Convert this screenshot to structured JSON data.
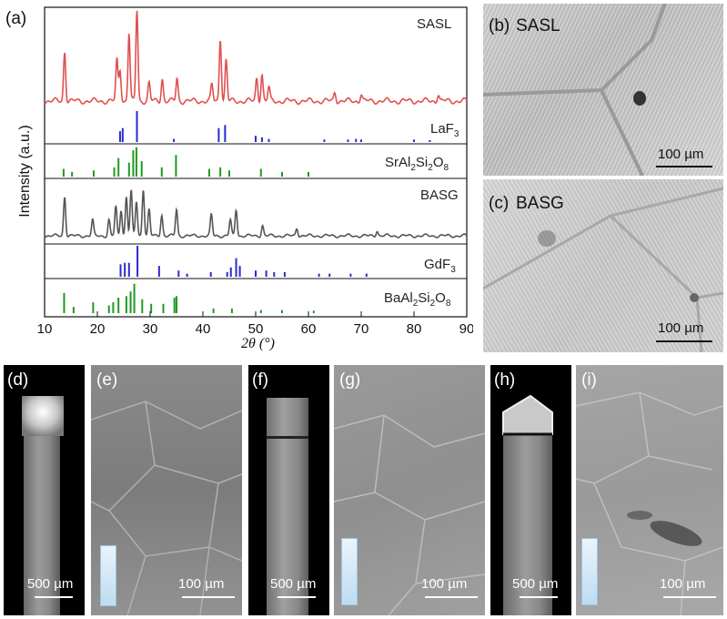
{
  "panels": {
    "a": "(a)",
    "b": "(b)",
    "c": "(c)",
    "d": "(d)",
    "e": "(e)",
    "f": "(f)",
    "g": "(g)",
    "h": "(h)",
    "i": "(i)"
  },
  "micrographs": {
    "b_title": "SASL",
    "c_title": "BASG",
    "scale_100": "100 µm",
    "scale_500": "500 µm"
  },
  "chart_data": {
    "type": "line",
    "xlabel": "2θ (°)",
    "ylabel": "Intensity (a.u.)",
    "xlim": [
      10,
      90
    ],
    "xticks": [
      10,
      20,
      30,
      40,
      50,
      60,
      70,
      80,
      90
    ],
    "series": [
      {
        "name": "SASL",
        "kind": "pattern",
        "color": "#e05050",
        "peaks": [
          [
            13.8,
            0.55
          ],
          [
            23.7,
            0.45
          ],
          [
            24.3,
            0.35
          ],
          [
            26.0,
            0.75
          ],
          [
            27.5,
            1.0
          ],
          [
            29.8,
            0.2
          ],
          [
            32.3,
            0.25
          ],
          [
            35.1,
            0.25
          ],
          [
            41.7,
            0.18
          ],
          [
            43.3,
            0.7
          ],
          [
            44.4,
            0.45
          ],
          [
            50.2,
            0.25
          ],
          [
            51.2,
            0.3
          ],
          [
            52.5,
            0.15
          ],
          [
            65.0,
            0.1
          ],
          [
            70.0,
            0.08
          ],
          [
            84.6,
            0.08
          ]
        ]
      },
      {
        "name": "LaF3",
        "kind": "reference",
        "color": "#2a2ad0",
        "peaks": [
          [
            24.3,
            0.35
          ],
          [
            24.8,
            0.45
          ],
          [
            27.5,
            1.0
          ],
          [
            34.5,
            0.1
          ],
          [
            43.0,
            0.45
          ],
          [
            44.2,
            0.55
          ],
          [
            50.0,
            0.2
          ],
          [
            51.2,
            0.15
          ],
          [
            52.5,
            0.1
          ],
          [
            63.0,
            0.08
          ],
          [
            67.5,
            0.08
          ],
          [
            69.0,
            0.1
          ],
          [
            70.0,
            0.08
          ],
          [
            80.0,
            0.08
          ],
          [
            83.0,
            0.06
          ]
        ]
      },
      {
        "name": "SrAl2Si2O8",
        "kind": "reference",
        "color": "#1f9a1f",
        "peaks": [
          [
            13.6,
            0.25
          ],
          [
            15.2,
            0.15
          ],
          [
            19.3,
            0.2
          ],
          [
            23.2,
            0.3
          ],
          [
            24.0,
            0.6
          ],
          [
            26.0,
            0.45
          ],
          [
            26.8,
            0.85
          ],
          [
            27.4,
            0.95
          ],
          [
            28.4,
            0.5
          ],
          [
            32.2,
            0.3
          ],
          [
            34.9,
            0.7
          ],
          [
            41.2,
            0.25
          ],
          [
            43.3,
            0.3
          ],
          [
            45.0,
            0.2
          ],
          [
            51.0,
            0.25
          ],
          [
            55.0,
            0.15
          ],
          [
            60.0,
            0.15
          ]
        ]
      },
      {
        "name": "BASG",
        "kind": "pattern",
        "color": "#555555",
        "peaks": [
          [
            13.8,
            0.75
          ],
          [
            19.1,
            0.3
          ],
          [
            22.2,
            0.3
          ],
          [
            23.5,
            0.55
          ],
          [
            24.5,
            0.5
          ],
          [
            25.5,
            0.75
          ],
          [
            26.4,
            0.85
          ],
          [
            27.4,
            0.65
          ],
          [
            28.7,
            0.9
          ],
          [
            29.8,
            0.5
          ],
          [
            32.2,
            0.4
          ],
          [
            35.0,
            0.5
          ],
          [
            41.6,
            0.4
          ],
          [
            45.2,
            0.3
          ],
          [
            46.3,
            0.5
          ],
          [
            51.3,
            0.2
          ],
          [
            57.8,
            0.15
          ],
          [
            73.0,
            0.1
          ]
        ]
      },
      {
        "name": "GdF3",
        "kind": "reference",
        "color": "#2a2ad0",
        "peaks": [
          [
            24.4,
            0.4
          ],
          [
            25.2,
            0.45
          ],
          [
            26.0,
            0.45
          ],
          [
            27.6,
            1.0
          ],
          [
            31.7,
            0.35
          ],
          [
            35.4,
            0.2
          ],
          [
            37.0,
            0.1
          ],
          [
            41.5,
            0.15
          ],
          [
            44.6,
            0.15
          ],
          [
            45.3,
            0.3
          ],
          [
            46.3,
            0.6
          ],
          [
            47.0,
            0.35
          ],
          [
            50.0,
            0.2
          ],
          [
            52.0,
            0.2
          ],
          [
            53.5,
            0.15
          ],
          [
            55.5,
            0.15
          ],
          [
            62.0,
            0.1
          ],
          [
            64.0,
            0.1
          ],
          [
            68.0,
            0.1
          ],
          [
            71.0,
            0.1
          ]
        ]
      },
      {
        "name": "BaAl2Si2O8",
        "kind": "reference",
        "color": "#1f9a1f",
        "peaks": [
          [
            13.7,
            0.65
          ],
          [
            15.5,
            0.2
          ],
          [
            19.2,
            0.35
          ],
          [
            22.2,
            0.25
          ],
          [
            23.0,
            0.35
          ],
          [
            24.0,
            0.5
          ],
          [
            25.5,
            0.55
          ],
          [
            26.3,
            0.7
          ],
          [
            27.0,
            0.95
          ],
          [
            28.5,
            0.45
          ],
          [
            30.2,
            0.3
          ],
          [
            32.5,
            0.3
          ],
          [
            34.6,
            0.5
          ],
          [
            35.0,
            0.55
          ],
          [
            42.0,
            0.15
          ],
          [
            45.5,
            0.15
          ],
          [
            51.0,
            0.1
          ],
          [
            55.0,
            0.1
          ],
          [
            61.0,
            0.08
          ]
        ]
      }
    ]
  }
}
